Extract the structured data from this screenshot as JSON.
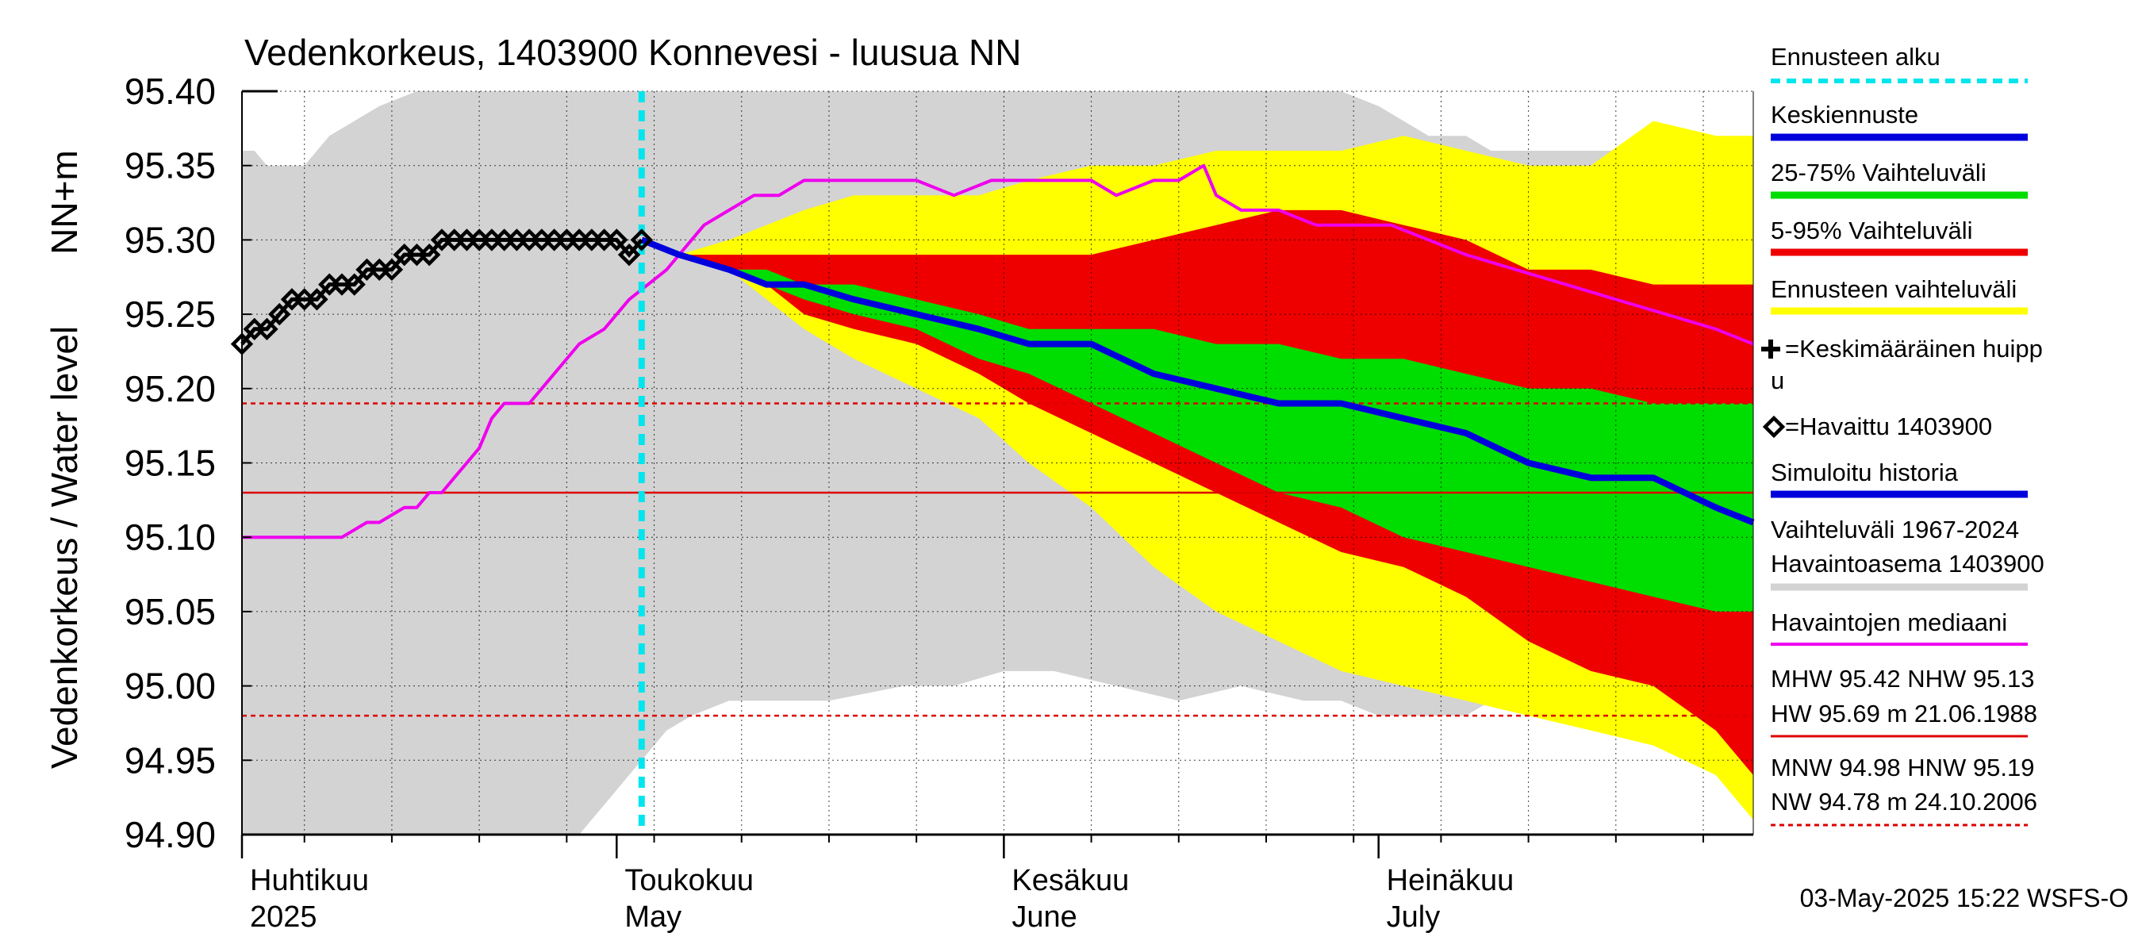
{
  "chart_data": {
    "type": "area",
    "title": "Vedenkorkeus, 1403900 Konnevesi - luusua NN",
    "ylabel_left": "Vedenkorkeus / Water level",
    "ylabel_unit": "NN+m",
    "ylim": [
      94.9,
      95.4
    ],
    "yticks": [
      "95.40",
      "95.35",
      "95.30",
      "95.25",
      "95.20",
      "95.15",
      "95.10",
      "95.05",
      "95.00",
      "94.95",
      "94.90"
    ],
    "x_start": "2025-04-01",
    "x_end": "2025-07-31",
    "month_labels": [
      {
        "date": "2025-04-01",
        "fi": "Huhtikuu",
        "en": "2025"
      },
      {
        "date": "2025-05-01",
        "fi": "Toukokuu",
        "en": "May"
      },
      {
        "date": "2025-06-01",
        "fi": "Kesäkuu",
        "en": "June"
      },
      {
        "date": "2025-07-01",
        "fi": "Heinäkuu",
        "en": "July"
      }
    ],
    "forecast_start": "2025-05-03",
    "grid": true,
    "timestamp": "03-May-2025 15:22 WSFS-O",
    "legend": [
      {
        "label": "Ennusteen alku",
        "color": "#00e5ee",
        "style": "dashed"
      },
      {
        "label": "Keskiennuste",
        "color": "#0000dd",
        "style": "solid"
      },
      {
        "label": "25-75% Vaihteluväli",
        "color": "#00dd00",
        "style": "solid"
      },
      {
        "label": "5-95% Vaihteluväli",
        "color": "#ee0000",
        "style": "solid"
      },
      {
        "label": "Ennusteen vaihteluväli",
        "color": "#ffff00",
        "style": "solid"
      },
      {
        "label_line1": "=Keskimääräinen huipp",
        "label_line2": "u",
        "marker": "plus"
      },
      {
        "label": "=Havaittu 1403900",
        "marker": "diamond"
      },
      {
        "label": "Simuloitu historia",
        "color": "#0000dd",
        "style": "solid"
      },
      {
        "label_line1": "Vaihteluväli 1967-2024",
        "label_line2": " Havaintoasema 1403900",
        "color": "#d3d3d3",
        "style": "solid"
      },
      {
        "label": "Havaintojen mediaani",
        "color": "#ee00ee",
        "style": "solid"
      },
      {
        "label_line1": "MHW  95.42 NHW  95.13",
        "label_line2": "HW  95.69 m 21.06.1988",
        "color": "#dd0000",
        "style": "solid"
      },
      {
        "label_line1": "MNW  94.98 HNW  95.19",
        "label_line2": "NW  94.78 m 24.10.2006",
        "color": "#dd0000",
        "style": "dashed"
      }
    ],
    "reference_lines": {
      "NHW": 95.13,
      "HNW": 95.19,
      "MNW": 94.98
    },
    "colors": {
      "history_range": "#d3d3d3",
      "forecast_range": "#ffff00",
      "p5_95": "#ee0000",
      "p25_75": "#00dd00",
      "mean_forecast": "#0000dd",
      "median_obs": "#ee00ee",
      "observed": "#000000",
      "forecast_start": "#00e5ee"
    },
    "history_range": {
      "x": [
        "2025-04-01",
        "2025-04-02",
        "2025-04-03",
        "2025-04-06",
        "2025-04-08",
        "2025-04-10",
        "2025-04-12",
        "2025-04-15",
        "2025-04-17",
        "2025-04-20",
        "2025-04-23",
        "2025-04-25",
        "2025-04-28",
        "2025-04-29",
        "2025-05-01",
        "2025-05-03",
        "2025-05-05",
        "2025-05-07",
        "2025-05-10",
        "2025-05-14",
        "2025-05-18",
        "2025-05-24",
        "2025-05-28",
        "2025-06-01",
        "2025-06-05",
        "2025-06-10",
        "2025-06-15",
        "2025-06-20",
        "2025-06-25",
        "2025-06-28",
        "2025-07-01",
        "2025-07-03",
        "2025-07-05",
        "2025-07-08",
        "2025-07-10",
        "2025-07-15",
        "2025-07-20",
        "2025-07-25",
        "2025-07-28",
        "2025-07-31"
      ],
      "upper": [
        95.36,
        95.36,
        95.35,
        95.35,
        95.37,
        95.38,
        95.39,
        95.4,
        95.4,
        95.4,
        95.4,
        95.4,
        95.4,
        95.4,
        95.4,
        95.4,
        95.4,
        95.4,
        95.4,
        95.4,
        95.4,
        95.4,
        95.4,
        95.4,
        95.4,
        95.4,
        95.4,
        95.4,
        95.4,
        95.4,
        95.39,
        95.38,
        95.37,
        95.37,
        95.36,
        95.36,
        95.36,
        95.36,
        95.36,
        95.36
      ],
      "lower": [
        94.9,
        94.9,
        94.9,
        94.9,
        94.9,
        94.9,
        94.9,
        94.9,
        94.9,
        94.9,
        94.9,
        94.9,
        94.9,
        94.91,
        94.93,
        94.95,
        94.97,
        94.98,
        94.99,
        94.99,
        94.99,
        95.0,
        95.0,
        95.01,
        95.01,
        95.0,
        94.99,
        95.0,
        94.99,
        94.99,
        94.98,
        94.98,
        94.98,
        94.98,
        94.99,
        95.0,
        95.0,
        94.99,
        94.99,
        94.97
      ]
    },
    "forecast_range": {
      "x": [
        "2025-05-03",
        "2025-05-06",
        "2025-05-10",
        "2025-05-13",
        "2025-05-16",
        "2025-05-20",
        "2025-05-25",
        "2025-05-30",
        "2025-06-03",
        "2025-06-08",
        "2025-06-13",
        "2025-06-18",
        "2025-06-23",
        "2025-06-28",
        "2025-07-03",
        "2025-07-08",
        "2025-07-13",
        "2025-07-18",
        "2025-07-23",
        "2025-07-28",
        "2025-07-31"
      ],
      "upper": [
        95.3,
        95.29,
        95.3,
        95.31,
        95.32,
        95.33,
        95.33,
        95.33,
        95.34,
        95.35,
        95.35,
        95.36,
        95.36,
        95.36,
        95.37,
        95.36,
        95.35,
        95.35,
        95.38,
        95.37,
        95.37
      ],
      "lower": [
        95.3,
        95.29,
        95.28,
        95.26,
        95.24,
        95.22,
        95.2,
        95.18,
        95.15,
        95.12,
        95.08,
        95.05,
        95.03,
        95.01,
        95.0,
        94.99,
        94.98,
        94.97,
        94.96,
        94.94,
        94.91
      ]
    },
    "p5_95": {
      "x": [
        "2025-05-03",
        "2025-05-06",
        "2025-05-10",
        "2025-05-13",
        "2025-05-16",
        "2025-05-20",
        "2025-05-25",
        "2025-05-30",
        "2025-06-03",
        "2025-06-08",
        "2025-06-13",
        "2025-06-18",
        "2025-06-23",
        "2025-06-28",
        "2025-07-03",
        "2025-07-08",
        "2025-07-13",
        "2025-07-18",
        "2025-07-23",
        "2025-07-28",
        "2025-07-31"
      ],
      "upper": [
        95.3,
        95.29,
        95.29,
        95.29,
        95.29,
        95.29,
        95.29,
        95.29,
        95.29,
        95.29,
        95.3,
        95.31,
        95.32,
        95.32,
        95.31,
        95.3,
        95.28,
        95.28,
        95.27,
        95.27,
        95.27
      ],
      "lower": [
        95.3,
        95.29,
        95.28,
        95.27,
        95.25,
        95.24,
        95.23,
        95.21,
        95.19,
        95.17,
        95.15,
        95.13,
        95.11,
        95.09,
        95.08,
        95.06,
        95.03,
        95.01,
        95.0,
        94.97,
        94.94
      ]
    },
    "p25_75": {
      "x": [
        "2025-05-03",
        "2025-05-06",
        "2025-05-10",
        "2025-05-13",
        "2025-05-16",
        "2025-05-20",
        "2025-05-25",
        "2025-05-30",
        "2025-06-03",
        "2025-06-08",
        "2025-06-13",
        "2025-06-18",
        "2025-06-23",
        "2025-06-28",
        "2025-07-03",
        "2025-07-08",
        "2025-07-13",
        "2025-07-18",
        "2025-07-23",
        "2025-07-28",
        "2025-07-31"
      ],
      "upper": [
        95.3,
        95.29,
        95.28,
        95.28,
        95.27,
        95.27,
        95.26,
        95.25,
        95.24,
        95.24,
        95.24,
        95.23,
        95.23,
        95.22,
        95.22,
        95.21,
        95.2,
        95.2,
        95.19,
        95.19,
        95.19
      ],
      "lower": [
        95.3,
        95.29,
        95.28,
        95.27,
        95.26,
        95.25,
        95.24,
        95.22,
        95.21,
        95.19,
        95.17,
        95.15,
        95.13,
        95.12,
        95.1,
        95.09,
        95.08,
        95.07,
        95.06,
        95.05,
        95.05
      ]
    },
    "mean_forecast": {
      "x": [
        "2025-05-03",
        "2025-05-06",
        "2025-05-10",
        "2025-05-13",
        "2025-05-16",
        "2025-05-20",
        "2025-05-25",
        "2025-05-30",
        "2025-06-03",
        "2025-06-08",
        "2025-06-13",
        "2025-06-18",
        "2025-06-23",
        "2025-06-28",
        "2025-07-03",
        "2025-07-08",
        "2025-07-13",
        "2025-07-18",
        "2025-07-23",
        "2025-07-28",
        "2025-07-31"
      ],
      "values": [
        95.3,
        95.29,
        95.28,
        95.27,
        95.27,
        95.26,
        95.25,
        95.24,
        95.23,
        95.23,
        95.21,
        95.2,
        95.19,
        95.19,
        95.18,
        95.17,
        95.15,
        95.14,
        95.14,
        95.12,
        95.11
      ]
    },
    "median_obs": {
      "x": [
        "2025-04-01",
        "2025-04-04",
        "2025-04-05",
        "2025-04-06",
        "2025-04-07",
        "2025-04-09",
        "2025-04-11",
        "2025-04-12",
        "2025-04-14",
        "2025-04-15",
        "2025-04-16",
        "2025-04-17",
        "2025-04-18",
        "2025-04-19",
        "2025-04-20",
        "2025-04-21",
        "2025-04-22",
        "2025-04-24",
        "2025-04-26",
        "2025-04-28",
        "2025-04-30",
        "2025-05-02",
        "2025-05-05",
        "2025-05-08",
        "2025-05-10",
        "2025-05-12",
        "2025-05-14",
        "2025-05-16",
        "2025-05-18",
        "2025-05-20",
        "2025-05-22",
        "2025-05-25",
        "2025-05-28",
        "2025-05-31",
        "2025-06-03",
        "2025-06-06",
        "2025-06-08",
        "2025-06-10",
        "2025-06-13",
        "2025-06-15",
        "2025-06-17",
        "2025-06-18",
        "2025-06-20",
        "2025-06-23",
        "2025-06-26",
        "2025-06-29",
        "2025-07-02",
        "2025-07-05",
        "2025-07-08",
        "2025-07-12",
        "2025-07-16",
        "2025-07-20",
        "2025-07-24",
        "2025-07-28",
        "2025-07-31"
      ],
      "values": [
        95.1,
        95.1,
        95.1,
        95.1,
        95.1,
        95.1,
        95.11,
        95.11,
        95.12,
        95.12,
        95.13,
        95.13,
        95.14,
        95.15,
        95.16,
        95.18,
        95.19,
        95.19,
        95.21,
        95.23,
        95.24,
        95.26,
        95.28,
        95.31,
        95.32,
        95.33,
        95.33,
        95.34,
        95.34,
        95.34,
        95.34,
        95.34,
        95.33,
        95.34,
        95.34,
        95.34,
        95.34,
        95.33,
        95.34,
        95.34,
        95.35,
        95.33,
        95.32,
        95.32,
        95.31,
        95.31,
        95.31,
        95.3,
        95.29,
        95.28,
        95.27,
        95.26,
        95.25,
        95.24,
        95.23
      ]
    },
    "observed": {
      "x": [
        "2025-04-01",
        "2025-04-02",
        "2025-04-03",
        "2025-04-04",
        "2025-04-05",
        "2025-04-06",
        "2025-04-07",
        "2025-04-08",
        "2025-04-09",
        "2025-04-10",
        "2025-04-11",
        "2025-04-12",
        "2025-04-13",
        "2025-04-14",
        "2025-04-15",
        "2025-04-16",
        "2025-04-17",
        "2025-04-18",
        "2025-04-19",
        "2025-04-20",
        "2025-04-21",
        "2025-04-22",
        "2025-04-23",
        "2025-04-24",
        "2025-04-25",
        "2025-04-26",
        "2025-04-27",
        "2025-04-28",
        "2025-04-29",
        "2025-04-30",
        "2025-05-01",
        "2025-05-02",
        "2025-05-03"
      ],
      "values": [
        95.23,
        95.24,
        95.24,
        95.25,
        95.26,
        95.26,
        95.26,
        95.27,
        95.27,
        95.27,
        95.28,
        95.28,
        95.28,
        95.29,
        95.29,
        95.29,
        95.3,
        95.3,
        95.3,
        95.3,
        95.3,
        95.3,
        95.3,
        95.3,
        95.3,
        95.3,
        95.3,
        95.3,
        95.3,
        95.3,
        95.3,
        95.29,
        95.3
      ]
    }
  }
}
